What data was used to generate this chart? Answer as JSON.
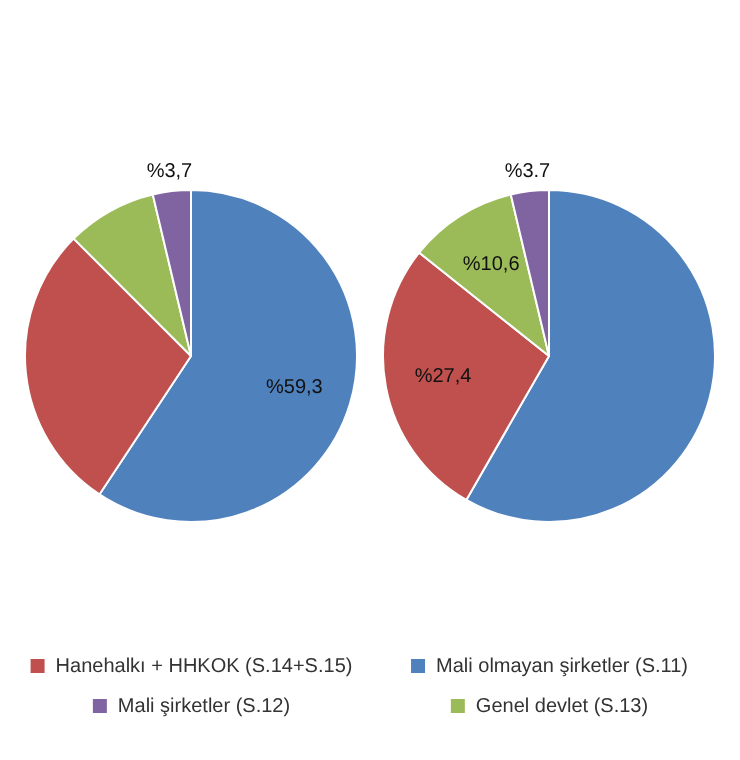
{
  "chart_data": [
    {
      "type": "pie",
      "categories": [
        null,
        "Hanehalkı + HHKOK (S.14+S.15)",
        null,
        "Mali şirketler (S.12)"
      ],
      "values": [
        59.3,
        28.2,
        8.8,
        3.7
      ],
      "value_labels": [
        "%59,3",
        null,
        null,
        "%3,7"
      ],
      "colors": [
        "#4f81bd",
        "#c0504d",
        "#9bbb59",
        "#8064a2"
      ],
      "legend": "bottom"
    },
    {
      "type": "pie",
      "categories": [
        "Mali olmayan şirketler (S.11)",
        null,
        "Genel devlet (S.13)",
        null
      ],
      "values": [
        58.3,
        27.4,
        10.6,
        3.7
      ],
      "value_labels": [
        null,
        "%27,4",
        "%10,6",
        "%3.7"
      ],
      "colors": [
        "#4f81bd",
        "#c0504d",
        "#9bbb59",
        "#8064a2"
      ],
      "legend": "bottom"
    }
  ]
}
